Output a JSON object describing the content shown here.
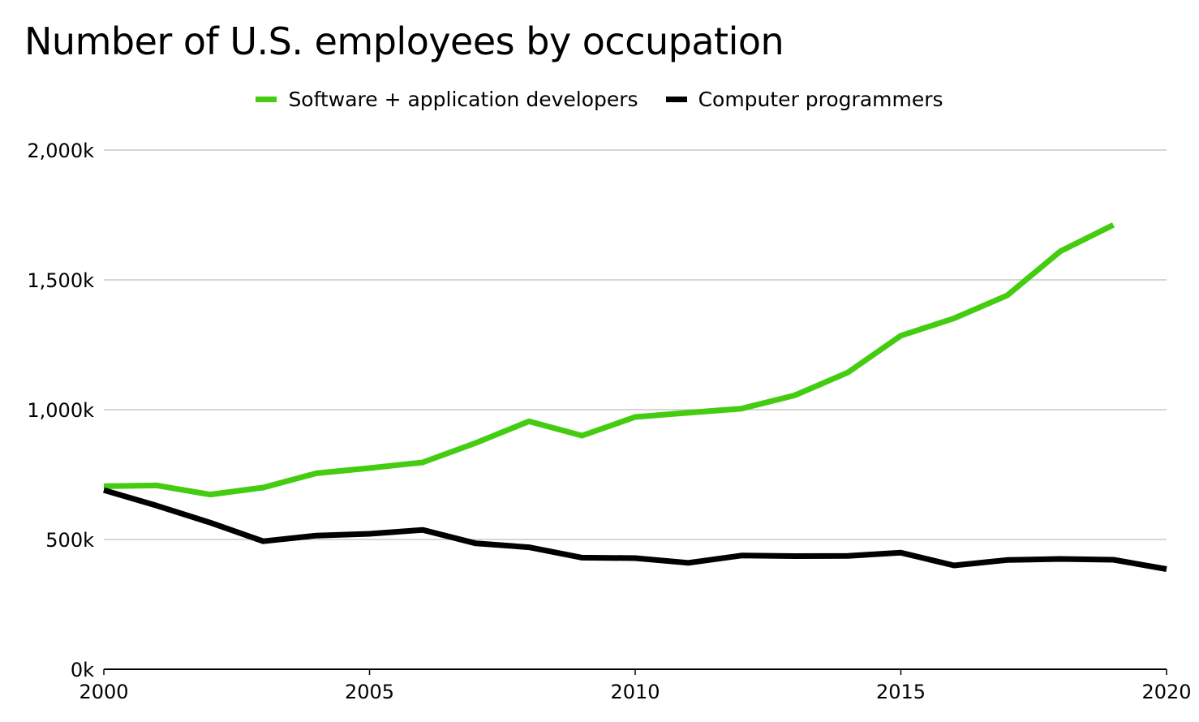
{
  "chart_data": {
    "type": "line",
    "title": "Number of U.S. employees by occupation",
    "xlabel": "",
    "ylabel": "",
    "xlim": [
      2000,
      2020
    ],
    "ylim": [
      0,
      2000
    ],
    "x_ticks": [
      "2000",
      "2005",
      "2010",
      "2015",
      "2020"
    ],
    "y_ticks": [
      "0k",
      "500k",
      "1,000k",
      "1,500k",
      "2,000k"
    ],
    "grid": true,
    "legend_position": "top-center",
    "series": [
      {
        "name": "Software + application developers",
        "color": "#44cc11",
        "x": [
          2000,
          2001,
          2002,
          2003,
          2004,
          2005,
          2006,
          2007,
          2008,
          2009,
          2010,
          2011,
          2012,
          2013,
          2014,
          2015,
          2016,
          2017,
          2018,
          2019
        ],
        "values": [
          705,
          708,
          673,
          700,
          755,
          775,
          797,
          872,
          955,
          900,
          972,
          988,
          1004,
          1055,
          1143,
          1285,
          1352,
          1440,
          1610,
          1712
        ]
      },
      {
        "name": "Computer programmers",
        "color": "#000000",
        "x": [
          2000,
          2001,
          2002,
          2003,
          2004,
          2005,
          2006,
          2007,
          2008,
          2009,
          2010,
          2011,
          2012,
          2013,
          2014,
          2015,
          2016,
          2017,
          2018,
          2019,
          2020
        ],
        "values": [
          690,
          630,
          565,
          493,
          515,
          522,
          537,
          485,
          470,
          430,
          428,
          410,
          438,
          436,
          437,
          449,
          400,
          421,
          425,
          422,
          386
        ]
      }
    ]
  }
}
